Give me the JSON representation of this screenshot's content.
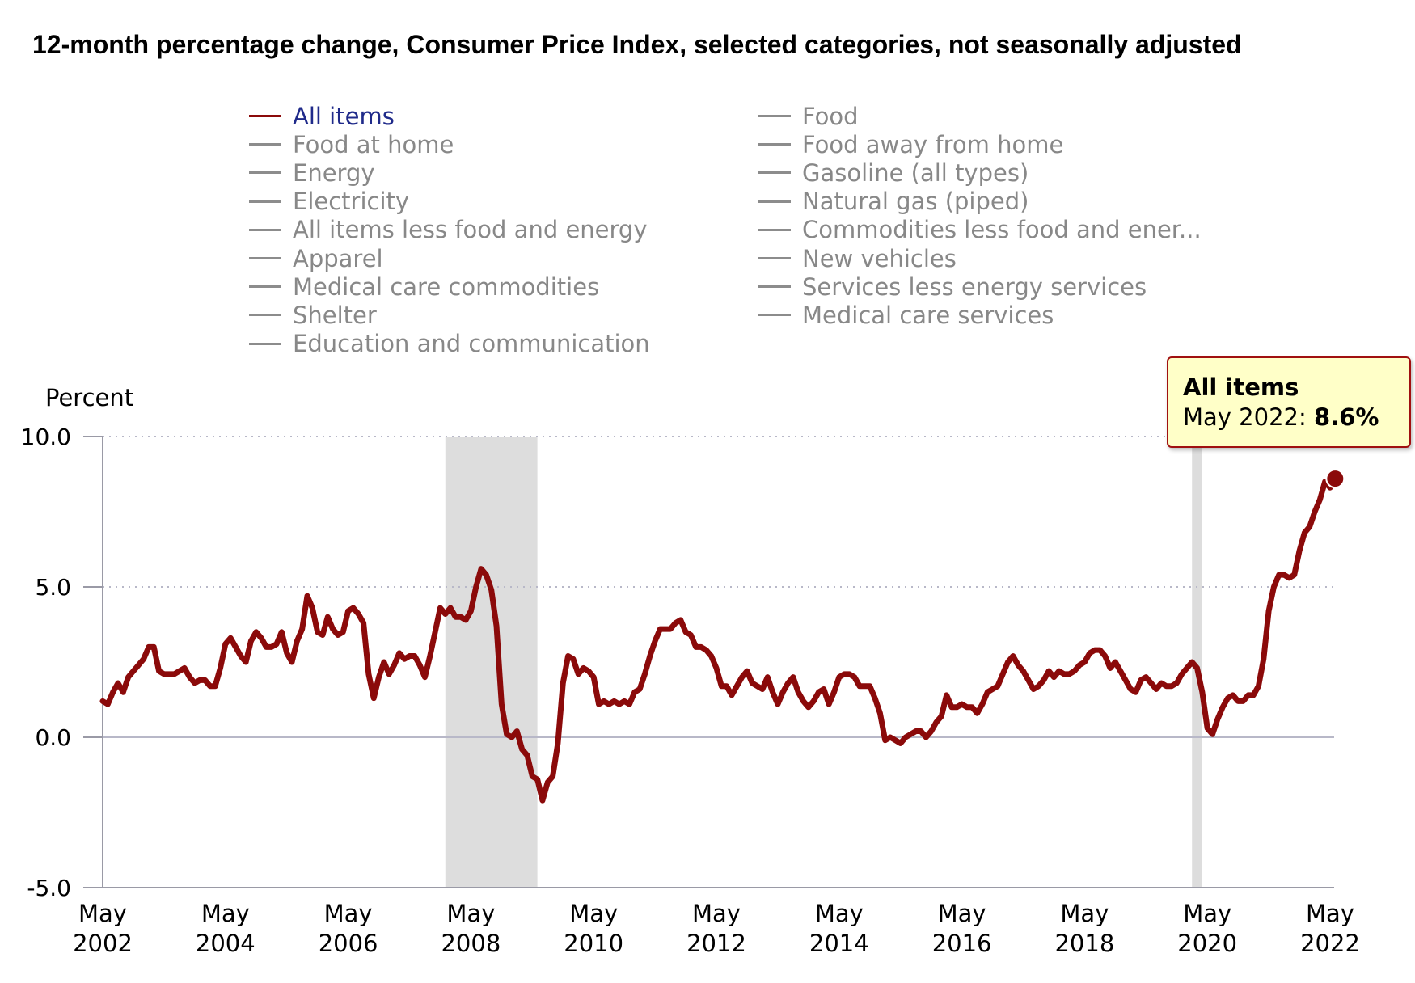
{
  "chart_data": {
    "type": "line",
    "title": "12-month percentage change, Consumer Price Index, selected categories, not seasonally adjusted",
    "ylabel": "Percent",
    "xlabel": "",
    "ylim": [
      -5.0,
      10.0
    ],
    "yticks": [
      "10.0",
      "5.0",
      "0.0",
      "-5.0"
    ],
    "ytick_values": [
      10,
      5,
      0,
      -5
    ],
    "xlim": [
      "2002-05",
      "2022-05"
    ],
    "xticks": [
      {
        "month": "May",
        "year": "2002"
      },
      {
        "month": "May",
        "year": "2004"
      },
      {
        "month": "May",
        "year": "2006"
      },
      {
        "month": "May",
        "year": "2008"
      },
      {
        "month": "May",
        "year": "2010"
      },
      {
        "month": "May",
        "year": "2012"
      },
      {
        "month": "May",
        "year": "2014"
      },
      {
        "month": "May",
        "year": "2016"
      },
      {
        "month": "May",
        "year": "2018"
      },
      {
        "month": "May",
        "year": "2020"
      },
      {
        "month": "May",
        "year": "2022"
      }
    ],
    "grid": "horizontal dotted",
    "legend_placement": "top",
    "recession_shading": [
      {
        "start": "2007-12",
        "end": "2009-06"
      },
      {
        "start": "2020-02",
        "end": "2020-04"
      }
    ],
    "legend": {
      "column1": [
        "All items",
        "Food at home",
        "Energy",
        "Electricity",
        "All items less food and energy",
        "Apparel",
        "Medical care commodities",
        "Shelter",
        "Education and communication"
      ],
      "column2": [
        "Food",
        "Food away from home",
        "Gasoline (all types)",
        "Natural gas (piped)",
        "Commodities less food and ener...",
        "New vehicles",
        "Services less energy services",
        "Medical care services"
      ],
      "active": "All items"
    },
    "colors": {
      "active_series": "#8b0a0a",
      "inactive_legend": "#888888",
      "active_legend_text": "#1f2a8a",
      "recession": "#dddddd",
      "tooltip_bg": "#ffffc8",
      "tooltip_border": "#a01010"
    },
    "series": [
      {
        "name": "All items",
        "color": "#8b0a0a",
        "start": "2002-05",
        "frequency": "monthly",
        "values": [
          1.2,
          1.1,
          1.5,
          1.8,
          1.5,
          2.0,
          2.2,
          2.4,
          2.6,
          3.0,
          3.0,
          2.2,
          2.1,
          2.1,
          2.1,
          2.2,
          2.3,
          2.0,
          1.8,
          1.9,
          1.9,
          1.7,
          1.7,
          2.3,
          3.1,
          3.3,
          3.0,
          2.7,
          2.5,
          3.2,
          3.5,
          3.3,
          3.0,
          3.0,
          3.1,
          3.5,
          2.8,
          2.5,
          3.2,
          3.6,
          4.7,
          4.3,
          3.5,
          3.4,
          4.0,
          3.6,
          3.4,
          3.5,
          4.2,
          4.3,
          4.1,
          3.8,
          2.1,
          1.3,
          2.0,
          2.5,
          2.1,
          2.4,
          2.8,
          2.6,
          2.7,
          2.7,
          2.4,
          2.0,
          2.7,
          3.5,
          4.3,
          4.1,
          4.3,
          4.0,
          4.0,
          3.9,
          4.2,
          5.0,
          5.6,
          5.4,
          4.9,
          3.7,
          1.1,
          0.1,
          0.0,
          0.2,
          -0.4,
          -0.6,
          -1.3,
          -1.4,
          -2.1,
          -1.5,
          -1.3,
          -0.2,
          1.8,
          2.7,
          2.6,
          2.1,
          2.3,
          2.2,
          2.0,
          1.1,
          1.2,
          1.1,
          1.2,
          1.1,
          1.2,
          1.1,
          1.5,
          1.6,
          2.1,
          2.7,
          3.2,
          3.6,
          3.6,
          3.6,
          3.8,
          3.9,
          3.5,
          3.4,
          3.0,
          3.0,
          2.9,
          2.7,
          2.3,
          1.7,
          1.7,
          1.4,
          1.7,
          2.0,
          2.2,
          1.8,
          1.7,
          1.6,
          2.0,
          1.5,
          1.1,
          1.5,
          1.8,
          2.0,
          1.5,
          1.2,
          1.0,
          1.2,
          1.5,
          1.6,
          1.1,
          1.5,
          2.0,
          2.1,
          2.1,
          2.0,
          1.7,
          1.7,
          1.7,
          1.3,
          0.8,
          -0.1,
          0.0,
          -0.1,
          -0.2,
          0.0,
          0.1,
          0.2,
          0.2,
          0.0,
          0.2,
          0.5,
          0.7,
          1.4,
          1.0,
          1.0,
          1.1,
          1.0,
          1.0,
          0.8,
          1.1,
          1.5,
          1.6,
          1.7,
          2.1,
          2.5,
          2.7,
          2.4,
          2.2,
          1.9,
          1.6,
          1.7,
          1.9,
          2.2,
          2.0,
          2.2,
          2.1,
          2.1,
          2.2,
          2.4,
          2.5,
          2.8,
          2.9,
          2.9,
          2.7,
          2.3,
          2.5,
          2.2,
          1.9,
          1.6,
          1.5,
          1.9,
          2.0,
          1.8,
          1.6,
          1.8,
          1.7,
          1.7,
          1.8,
          2.1,
          2.3,
          2.5,
          2.3,
          1.5,
          0.3,
          0.1,
          0.6,
          1.0,
          1.3,
          1.4,
          1.2,
          1.2,
          1.4,
          1.4,
          1.7,
          2.6,
          4.2,
          5.0,
          5.4,
          5.4,
          5.3,
          5.4,
          6.2,
          6.8,
          7.0,
          7.5,
          7.9,
          8.5,
          8.3,
          8.6
        ]
      }
    ],
    "tooltip": {
      "series": "All items",
      "date_label": "May 2022:",
      "value_label": "8.6%"
    }
  }
}
